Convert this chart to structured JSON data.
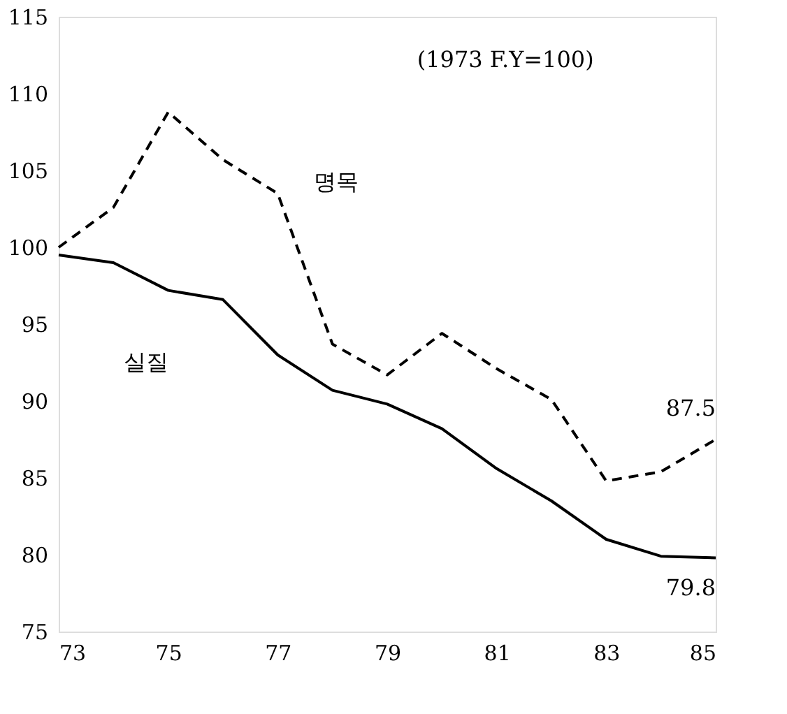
{
  "chart_data": {
    "type": "line",
    "x": [
      73,
      74,
      75,
      76,
      77,
      78,
      79,
      80,
      81,
      82,
      83,
      84,
      85
    ],
    "series": [
      {
        "name": "명목",
        "color": "#000000",
        "line_style": "dashed",
        "values": [
          100,
          102.6,
          108.8,
          105.7,
          103.5,
          93.7,
          91.7,
          94.4,
          92.1,
          90.1,
          84.8,
          85.4,
          87.5
        ]
      },
      {
        "name": "실질",
        "color": "#000000",
        "line_style": "solid",
        "values": [
          99.5,
          99.0,
          97.2,
          96.6,
          93.0,
          90.7,
          89.8,
          88.2,
          85.6,
          83.5,
          81.0,
          79.9,
          79.8
        ]
      }
    ],
    "xlim": [
      73,
      85
    ],
    "xticks": [
      73,
      75,
      77,
      79,
      81,
      83,
      85
    ],
    "ylim": [
      75,
      115
    ],
    "yticks": [
      75,
      80,
      85,
      90,
      95,
      100,
      105,
      110,
      115
    ],
    "grid": false,
    "marker": "none",
    "annotations": [
      "(1973 F.Y=100)",
      {
        "text": "87.5",
        "x": 85,
        "y": 87.5
      },
      {
        "text": "79.8",
        "x": 85,
        "y": 79.8
      }
    ]
  }
}
